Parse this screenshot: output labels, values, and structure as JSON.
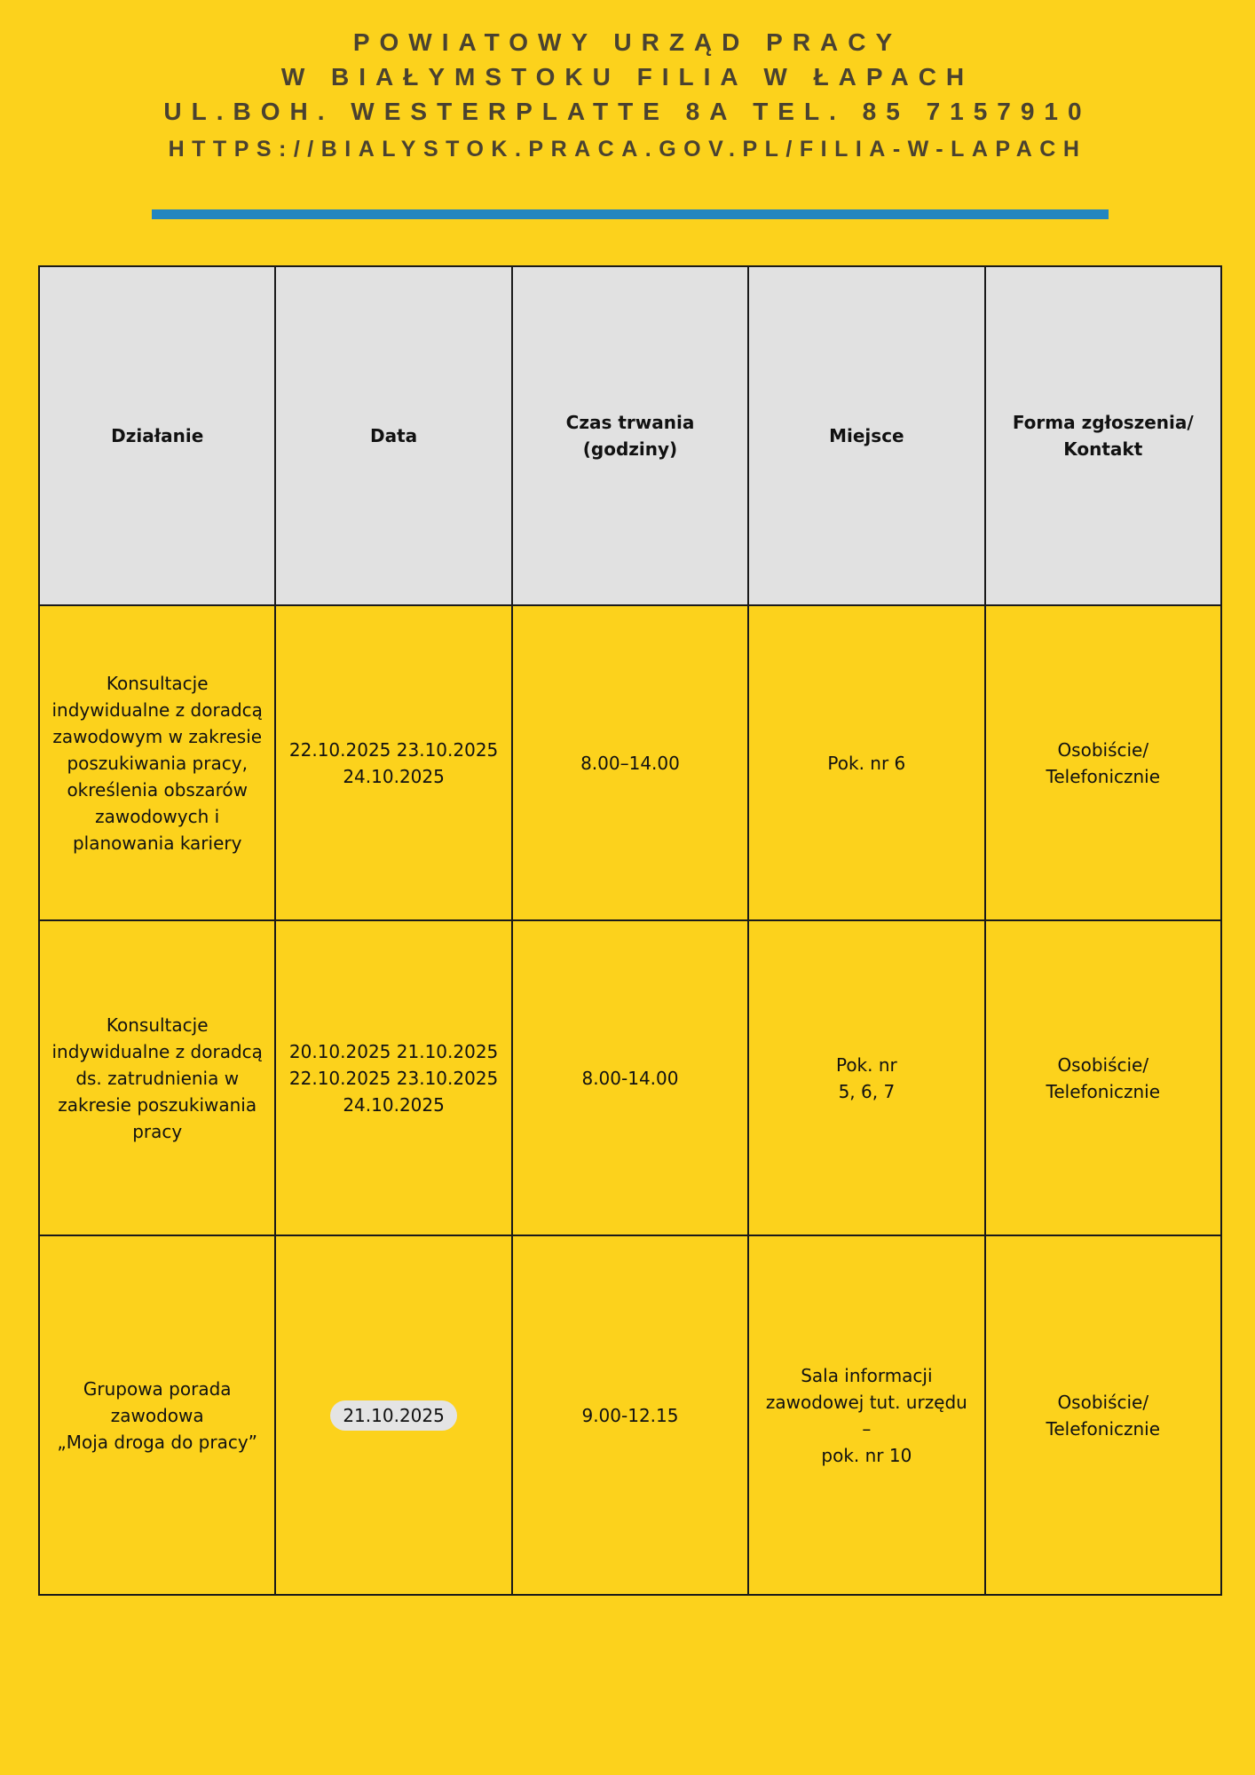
{
  "header": {
    "lines": [
      "POWIATOWY URZĄD PRACY",
      "W BIAŁYMSTOKU FILIA W ŁAPACH",
      "UL.BOH. WESTERPLATTE 8A TEL. 85 7157910"
    ],
    "url": "HTTPS://BIALYSTOK.PRACA.GOV.PL/FILIA-W-LAPACH"
  },
  "colors": {
    "background": "#FCD21C",
    "divider": "#2386C0",
    "text": "#4a4230",
    "header_cell": "#E1E1E1"
  },
  "table": {
    "columns": [
      [
        "Działanie"
      ],
      [
        "Data"
      ],
      [
        "Czas trwania",
        "(godziny)"
      ],
      [
        "Miejsce"
      ],
      [
        "Forma zgłoszenia/",
        "Kontakt"
      ]
    ],
    "rows": [
      [
        [
          "Konsultacje",
          "indywidualne z doradcą",
          "zawodowym w zakresie",
          "poszukiwania pracy,",
          "określenia obszarów",
          "zawodowych i",
          "planowania kariery"
        ],
        [
          "22.10.2025 23.10.2025",
          "24.10.2025"
        ],
        [
          "8.00–14.00"
        ],
        [
          "Pok. nr 6"
        ],
        [
          "Osobiście/",
          "Telefonicznie"
        ]
      ],
      [
        [
          "Konsultacje",
          "indywidualne z doradcą",
          "ds. zatrudnienia w",
          "zakresie poszukiwania",
          "pracy"
        ],
        [
          "20.10.2025 21.10.2025",
          "22.10.2025 23.10.2025",
          "24.10.2025"
        ],
        [
          "8.00-14.00"
        ],
        [
          "Pok. nr",
          "5, 6, 7"
        ],
        [
          "Osobiście/",
          "Telefonicznie"
        ]
      ],
      [
        [
          "Grupowa porada",
          "zawodowa",
          "„Moja droga do pracy”"
        ],
        [
          "21.10.2025"
        ],
        [
          "9.00-12.15"
        ],
        [
          "Sala informacji",
          "zawodowej tut. urzędu",
          "–",
          "pok. nr 10"
        ],
        [
          "Osobiście/",
          "Telefonicznie"
        ]
      ]
    ]
  }
}
